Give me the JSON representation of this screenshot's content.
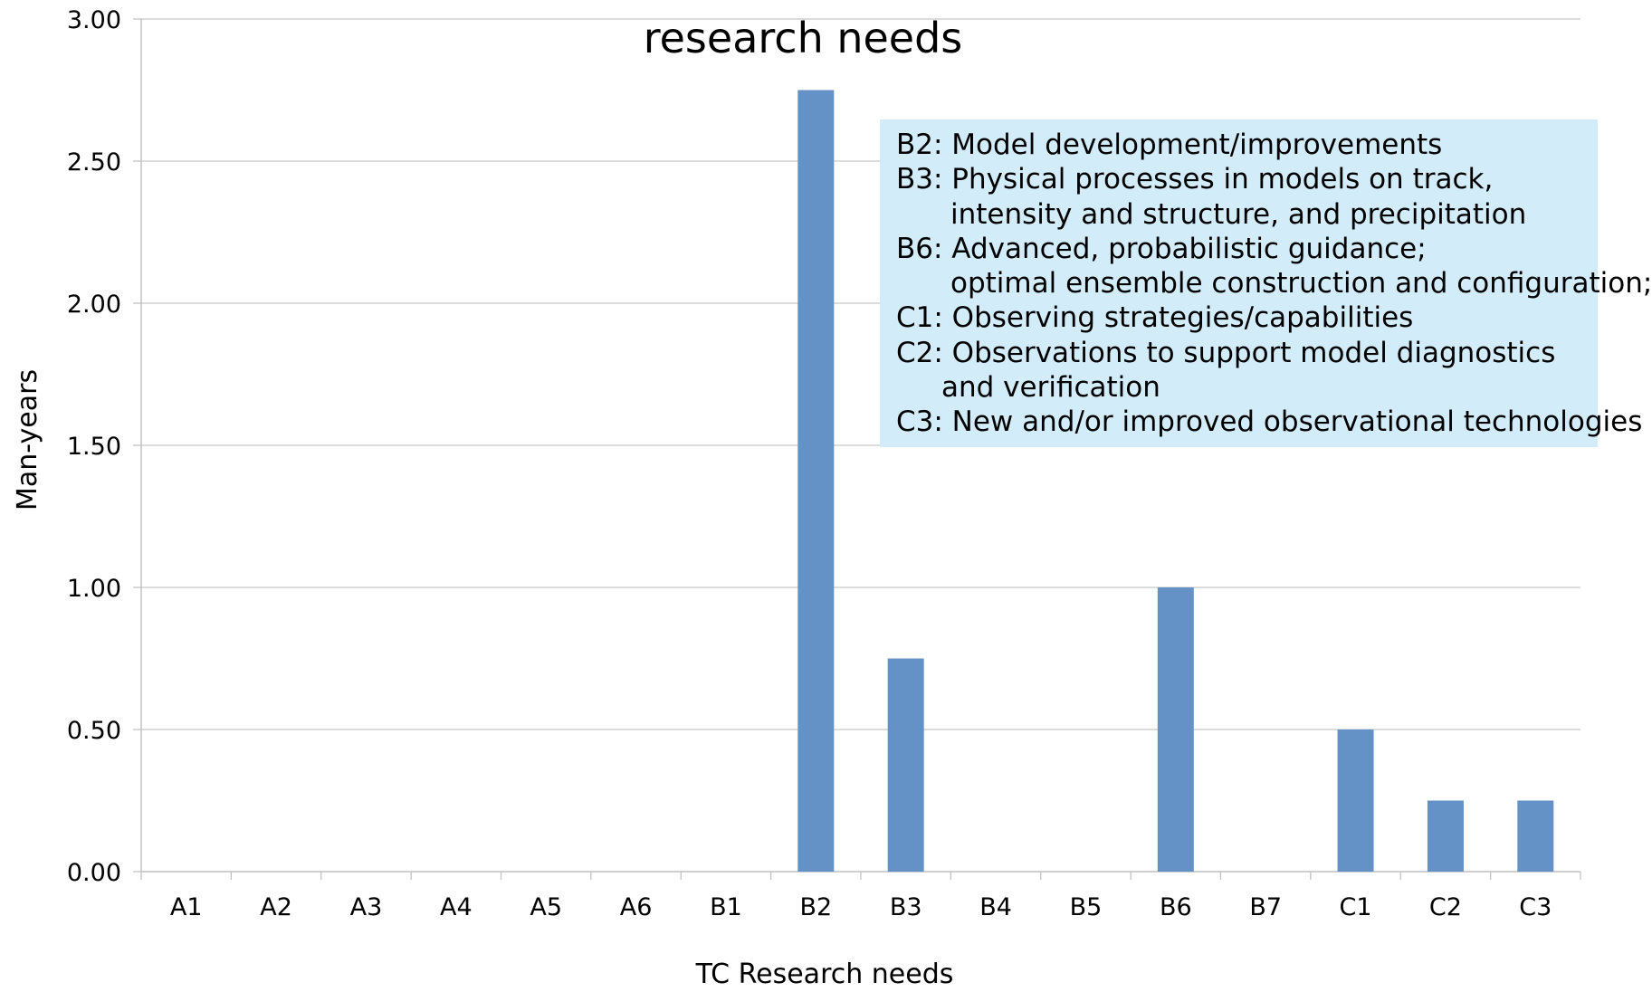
{
  "chart_data": {
    "type": "bar",
    "title": "research needs",
    "xlabel": "TC Research needs",
    "ylabel": "Man-years",
    "ylim": [
      0,
      3
    ],
    "yticks": [
      "0.00",
      "0.50",
      "1.00",
      "1.50",
      "2.00",
      "2.50",
      "3.00"
    ],
    "grid": true,
    "bar_color": "#6592c6",
    "categories": [
      "A1",
      "A2",
      "A3",
      "A4",
      "A5",
      "A6",
      "B1",
      "B2",
      "B3",
      "B4",
      "B5",
      "B6",
      "B7",
      "C1",
      "C2",
      "C3"
    ],
    "values": [
      0,
      0,
      0,
      0,
      0,
      0,
      0,
      2.75,
      0.75,
      0,
      0,
      1.0,
      0,
      0.5,
      0.25,
      0.25
    ],
    "annotation": {
      "background": "#d3ecfa",
      "lines": [
        "B2: Model development/improvements",
        "B3: Physical processes in models on track,",
        "intensity and structure, and precipitation",
        "B6: Advanced, probabilistic guidance;",
        "optimal ensemble construction and configuration;",
        "C1: Observing strategies/capabilities",
        "C2: Observations to support model diagnostics",
        "and verification",
        "C3: New and/or improved observational technologies"
      ]
    }
  }
}
